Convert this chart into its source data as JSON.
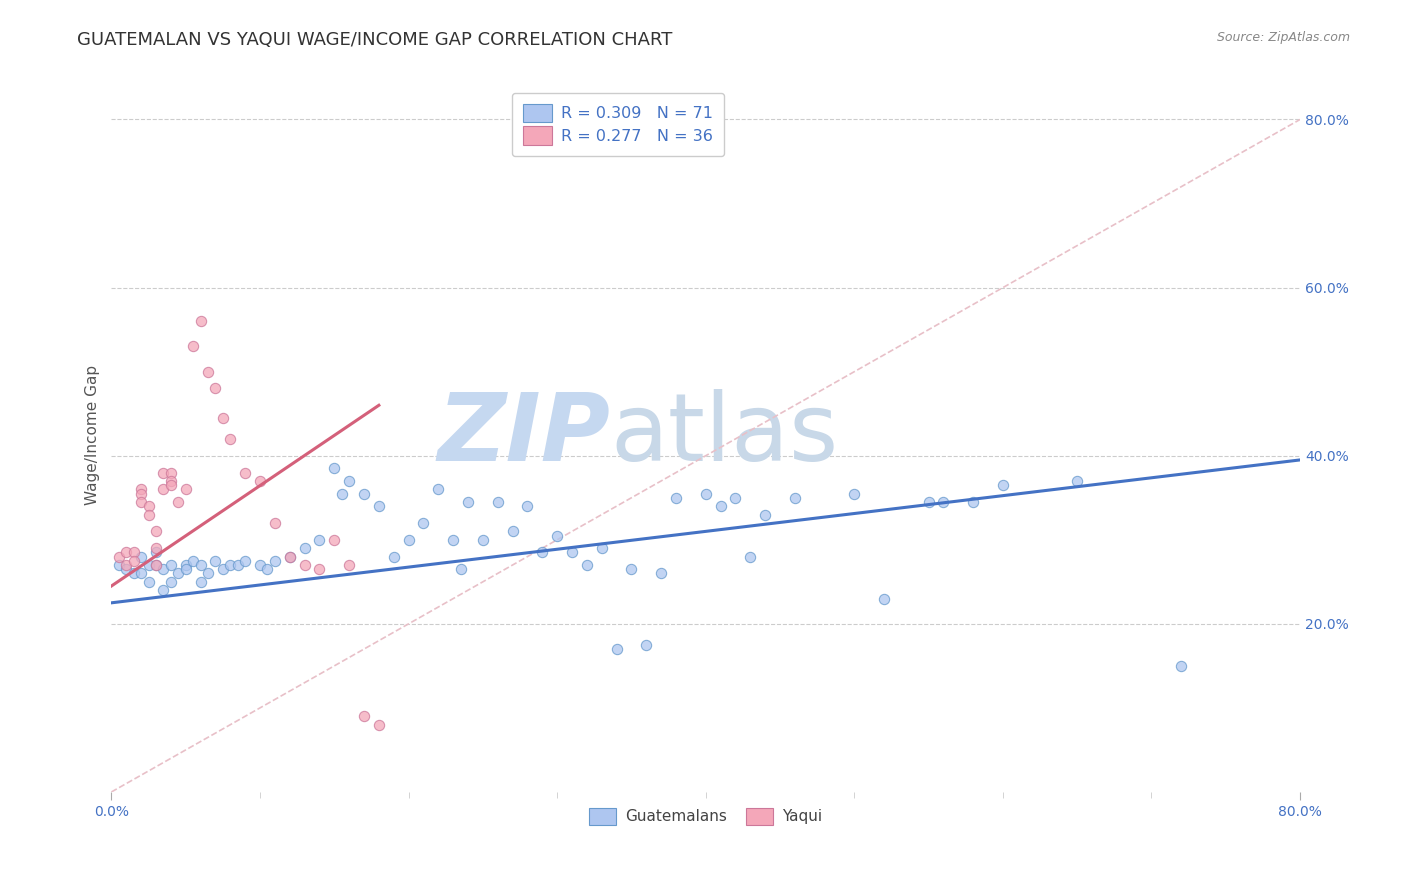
{
  "title": "GUATEMALAN VS YAQUI WAGE/INCOME GAP CORRELATION CHART",
  "source": "Source: ZipAtlas.com",
  "ylabel": "Wage/Income Gap",
  "xlim": [
    0.0,
    0.8
  ],
  "ylim": [
    0.0,
    0.85
  ],
  "y_ticks_right": [
    0.2,
    0.4,
    0.6,
    0.8
  ],
  "y_tick_labels_right": [
    "20.0%",
    "40.0%",
    "60.0%",
    "80.0%"
  ],
  "legend_label1": "R = 0.309   N = 71",
  "legend_label2": "R = 0.277   N = 36",
  "legend_color1": "#aec6f0",
  "legend_color2": "#f4a7b9",
  "scatter_blue_x": [
    0.005,
    0.01,
    0.015,
    0.02,
    0.02,
    0.025,
    0.025,
    0.03,
    0.03,
    0.035,
    0.035,
    0.04,
    0.04,
    0.045,
    0.05,
    0.05,
    0.055,
    0.06,
    0.06,
    0.065,
    0.07,
    0.075,
    0.08,
    0.085,
    0.09,
    0.1,
    0.105,
    0.11,
    0.12,
    0.13,
    0.14,
    0.15,
    0.155,
    0.16,
    0.17,
    0.18,
    0.19,
    0.2,
    0.21,
    0.22,
    0.23,
    0.235,
    0.24,
    0.25,
    0.26,
    0.27,
    0.28,
    0.29,
    0.3,
    0.31,
    0.32,
    0.33,
    0.34,
    0.35,
    0.36,
    0.37,
    0.38,
    0.4,
    0.41,
    0.42,
    0.43,
    0.44,
    0.46,
    0.5,
    0.52,
    0.55,
    0.56,
    0.58,
    0.6,
    0.65,
    0.72
  ],
  "scatter_blue_y": [
    0.27,
    0.265,
    0.26,
    0.28,
    0.26,
    0.27,
    0.25,
    0.285,
    0.27,
    0.265,
    0.24,
    0.27,
    0.25,
    0.26,
    0.27,
    0.265,
    0.275,
    0.27,
    0.25,
    0.26,
    0.275,
    0.265,
    0.27,
    0.27,
    0.275,
    0.27,
    0.265,
    0.275,
    0.28,
    0.29,
    0.3,
    0.385,
    0.355,
    0.37,
    0.355,
    0.34,
    0.28,
    0.3,
    0.32,
    0.36,
    0.3,
    0.265,
    0.345,
    0.3,
    0.345,
    0.31,
    0.34,
    0.285,
    0.305,
    0.285,
    0.27,
    0.29,
    0.17,
    0.265,
    0.175,
    0.26,
    0.35,
    0.355,
    0.34,
    0.35,
    0.28,
    0.33,
    0.35,
    0.355,
    0.23,
    0.345,
    0.345,
    0.345,
    0.365,
    0.37,
    0.15
  ],
  "scatter_pink_x": [
    0.005,
    0.01,
    0.01,
    0.015,
    0.015,
    0.02,
    0.02,
    0.02,
    0.025,
    0.025,
    0.03,
    0.03,
    0.03,
    0.035,
    0.035,
    0.04,
    0.04,
    0.04,
    0.045,
    0.05,
    0.055,
    0.06,
    0.065,
    0.07,
    0.075,
    0.08,
    0.09,
    0.1,
    0.11,
    0.12,
    0.13,
    0.14,
    0.15,
    0.16,
    0.17,
    0.18
  ],
  "scatter_pink_y": [
    0.28,
    0.285,
    0.27,
    0.285,
    0.275,
    0.36,
    0.355,
    0.345,
    0.34,
    0.33,
    0.31,
    0.29,
    0.27,
    0.38,
    0.36,
    0.38,
    0.37,
    0.365,
    0.345,
    0.36,
    0.53,
    0.56,
    0.5,
    0.48,
    0.445,
    0.42,
    0.38,
    0.37,
    0.32,
    0.28,
    0.27,
    0.265,
    0.3,
    0.27,
    0.09,
    0.08
  ],
  "blue_line_x": [
    0.0,
    0.8
  ],
  "blue_line_y": [
    0.225,
    0.395
  ],
  "pink_line_x": [
    0.0,
    0.18
  ],
  "pink_line_y": [
    0.245,
    0.46
  ],
  "diag_line_x": [
    0.0,
    0.8
  ],
  "diag_line_y": [
    0.0,
    0.8
  ],
  "blue_color": "#4472c4",
  "blue_scatter_facecolor": "#aec6f0",
  "blue_scatter_edgecolor": "#6699cc",
  "pink_color": "#d4607a",
  "pink_scatter_facecolor": "#f4a7b9",
  "pink_scatter_edgecolor": "#cc7799",
  "diag_color": "#cccccc",
  "watermark_zip": "ZIP",
  "watermark_atlas": "atlas",
  "watermark_color_zip": "#c5d8f0",
  "watermark_color_atlas": "#c8d8e8",
  "background_color": "#ffffff",
  "title_fontsize": 13,
  "axis_label_fontsize": 11,
  "tick_fontsize": 10,
  "scatter_size": 55,
  "scatter_alpha": 0.75,
  "grid_color": "#cccccc",
  "grid_linestyle": "--",
  "grid_linewidth": 0.8
}
